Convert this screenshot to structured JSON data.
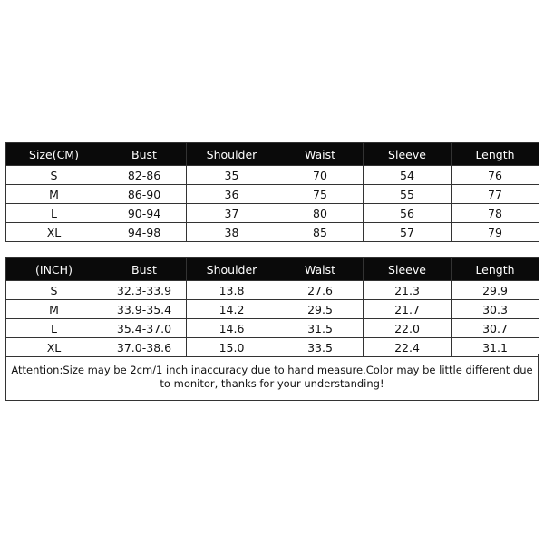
{
  "cm_table": {
    "headers": [
      "Size(CM)",
      "Bust",
      "Shoulder",
      "Waist",
      "Sleeve",
      "Length"
    ],
    "rows": [
      [
        "S",
        "82-86",
        "35",
        "70",
        "54",
        "76"
      ],
      [
        "M",
        "86-90",
        "36",
        "75",
        "55",
        "77"
      ],
      [
        "L",
        "90-94",
        "37",
        "80",
        "56",
        "78"
      ],
      [
        "XL",
        "94-98",
        "38",
        "85",
        "57",
        "79"
      ]
    ]
  },
  "inch_table": {
    "headers": [
      "(INCH)",
      "Bust",
      "Shoulder",
      "Waist",
      "Sleeve",
      "Length"
    ],
    "rows": [
      [
        "S",
        "32.3-33.9",
        "13.8",
        "27.6",
        "21.3",
        "29.9"
      ],
      [
        "M",
        "33.9-35.4",
        "14.2",
        "29.5",
        "21.7",
        "30.3"
      ],
      [
        "L",
        "35.4-37.0",
        "14.6",
        "31.5",
        "22.0",
        "30.7"
      ],
      [
        "XL",
        "37.0-38.6",
        "15.0",
        "33.5",
        "22.4",
        "31.1"
      ]
    ]
  },
  "attention": "Attention:Size may be 2cm/1 inch inaccuracy due to hand measure.Color may be little different due to monitor, thanks for your understanding!"
}
